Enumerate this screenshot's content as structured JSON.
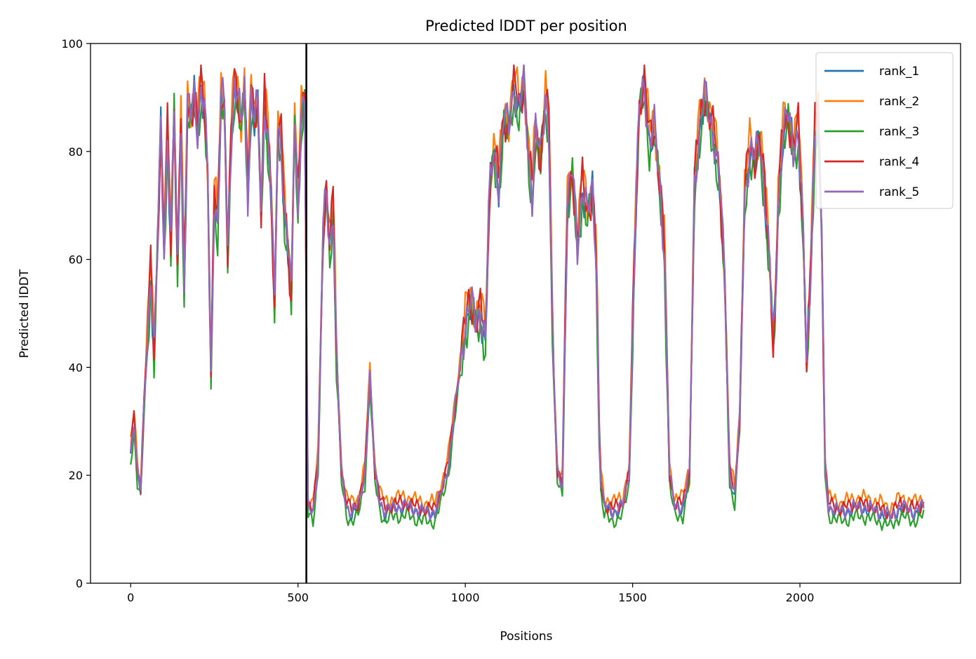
{
  "chart_data": {
    "type": "line",
    "title": "Predicted lDDT per position",
    "xlabel": "Positions",
    "ylabel": "Predicted lDDT",
    "xlim": [
      -120,
      2480
    ],
    "ylim": [
      0,
      100
    ],
    "xticks": [
      0,
      500,
      1000,
      1500,
      2000
    ],
    "yticks": [
      0,
      20,
      40,
      60,
      80,
      100
    ],
    "legend_position": "upper-right",
    "vline": {
      "x": 525,
      "color": "#000000"
    },
    "breakpoints": [
      [
        0,
        24
      ],
      [
        10,
        30
      ],
      [
        20,
        20
      ],
      [
        30,
        17
      ],
      [
        40,
        33
      ],
      [
        50,
        45
      ],
      [
        60,
        58
      ],
      [
        70,
        42
      ],
      [
        80,
        62
      ],
      [
        90,
        84
      ],
      [
        100,
        62
      ],
      [
        110,
        84
      ],
      [
        120,
        62
      ],
      [
        130,
        88
      ],
      [
        140,
        58
      ],
      [
        150,
        86
      ],
      [
        160,
        55
      ],
      [
        170,
        88
      ],
      [
        180,
        86
      ],
      [
        190,
        90
      ],
      [
        200,
        84
      ],
      [
        210,
        92
      ],
      [
        220,
        88
      ],
      [
        230,
        76
      ],
      [
        240,
        38
      ],
      [
        250,
        72
      ],
      [
        260,
        66
      ],
      [
        270,
        90
      ],
      [
        280,
        88
      ],
      [
        290,
        60
      ],
      [
        300,
        82
      ],
      [
        310,
        92
      ],
      [
        320,
        90
      ],
      [
        330,
        84
      ],
      [
        340,
        92
      ],
      [
        350,
        72
      ],
      [
        360,
        90
      ],
      [
        370,
        86
      ],
      [
        380,
        88
      ],
      [
        390,
        68
      ],
      [
        400,
        90
      ],
      [
        410,
        82
      ],
      [
        420,
        72
      ],
      [
        430,
        50
      ],
      [
        440,
        84
      ],
      [
        450,
        82
      ],
      [
        460,
        68
      ],
      [
        470,
        62
      ],
      [
        480,
        52
      ],
      [
        490,
        86
      ],
      [
        500,
        70
      ],
      [
        510,
        86
      ],
      [
        520,
        90
      ],
      [
        530,
        14
      ],
      [
        545,
        13
      ],
      [
        560,
        22
      ],
      [
        575,
        65
      ],
      [
        585,
        72
      ],
      [
        595,
        62
      ],
      [
        605,
        70
      ],
      [
        615,
        42
      ],
      [
        630,
        20
      ],
      [
        645,
        14
      ],
      [
        660,
        13
      ],
      [
        680,
        14
      ],
      [
        700,
        20
      ],
      [
        715,
        38
      ],
      [
        730,
        20
      ],
      [
        745,
        15
      ],
      [
        760,
        13
      ],
      [
        790,
        14
      ],
      [
        830,
        14
      ],
      [
        870,
        13
      ],
      [
        910,
        13
      ],
      [
        935,
        18
      ],
      [
        950,
        22
      ],
      [
        965,
        30
      ],
      [
        985,
        40
      ],
      [
        1000,
        48
      ],
      [
        1015,
        52
      ],
      [
        1030,
        48
      ],
      [
        1045,
        50
      ],
      [
        1060,
        45
      ],
      [
        1072,
        72
      ],
      [
        1085,
        80
      ],
      [
        1100,
        74
      ],
      [
        1115,
        86
      ],
      [
        1130,
        84
      ],
      [
        1145,
        92
      ],
      [
        1160,
        88
      ],
      [
        1175,
        92
      ],
      [
        1190,
        78
      ],
      [
        1200,
        72
      ],
      [
        1210,
        84
      ],
      [
        1225,
        78
      ],
      [
        1240,
        90
      ],
      [
        1250,
        84
      ],
      [
        1262,
        42
      ],
      [
        1275,
        20
      ],
      [
        1290,
        18
      ],
      [
        1305,
        70
      ],
      [
        1320,
        76
      ],
      [
        1335,
        62
      ],
      [
        1350,
        74
      ],
      [
        1365,
        68
      ],
      [
        1380,
        72
      ],
      [
        1392,
        60
      ],
      [
        1402,
        20
      ],
      [
        1415,
        14
      ],
      [
        1440,
        13
      ],
      [
        1470,
        14
      ],
      [
        1490,
        20
      ],
      [
        1505,
        60
      ],
      [
        1520,
        88
      ],
      [
        1535,
        92
      ],
      [
        1550,
        82
      ],
      [
        1565,
        84
      ],
      [
        1580,
        74
      ],
      [
        1595,
        62
      ],
      [
        1610,
        20
      ],
      [
        1625,
        14
      ],
      [
        1650,
        14
      ],
      [
        1670,
        20
      ],
      [
        1685,
        74
      ],
      [
        1700,
        84
      ],
      [
        1715,
        90
      ],
      [
        1730,
        86
      ],
      [
        1745,
        82
      ],
      [
        1760,
        74
      ],
      [
        1775,
        56
      ],
      [
        1790,
        20
      ],
      [
        1805,
        16
      ],
      [
        1820,
        30
      ],
      [
        1835,
        72
      ],
      [
        1850,
        80
      ],
      [
        1865,
        78
      ],
      [
        1880,
        82
      ],
      [
        1895,
        72
      ],
      [
        1910,
        58
      ],
      [
        1922,
        42
      ],
      [
        1935,
        70
      ],
      [
        1950,
        84
      ],
      [
        1965,
        86
      ],
      [
        1980,
        80
      ],
      [
        1995,
        84
      ],
      [
        2010,
        64
      ],
      [
        2020,
        40
      ],
      [
        2030,
        54
      ],
      [
        2045,
        84
      ],
      [
        2055,
        86
      ],
      [
        2065,
        64
      ],
      [
        2075,
        22
      ],
      [
        2085,
        14
      ],
      [
        2120,
        13
      ],
      [
        2180,
        14
      ],
      [
        2240,
        13
      ],
      [
        2270,
        12
      ],
      [
        2300,
        14
      ],
      [
        2340,
        13
      ],
      [
        2370,
        14
      ]
    ],
    "series": [
      {
        "name": "rank_1",
        "color": "#1f77b4",
        "offset": 0.0
      },
      {
        "name": "rank_2",
        "color": "#ff7f0e",
        "offset": 2.0
      },
      {
        "name": "rank_3",
        "color": "#2ca02c",
        "offset": -1.5
      },
      {
        "name": "rank_4",
        "color": "#d62728",
        "offset": 0.8
      },
      {
        "name": "rank_5",
        "color": "#9467bd",
        "offset": 0.3
      }
    ]
  }
}
